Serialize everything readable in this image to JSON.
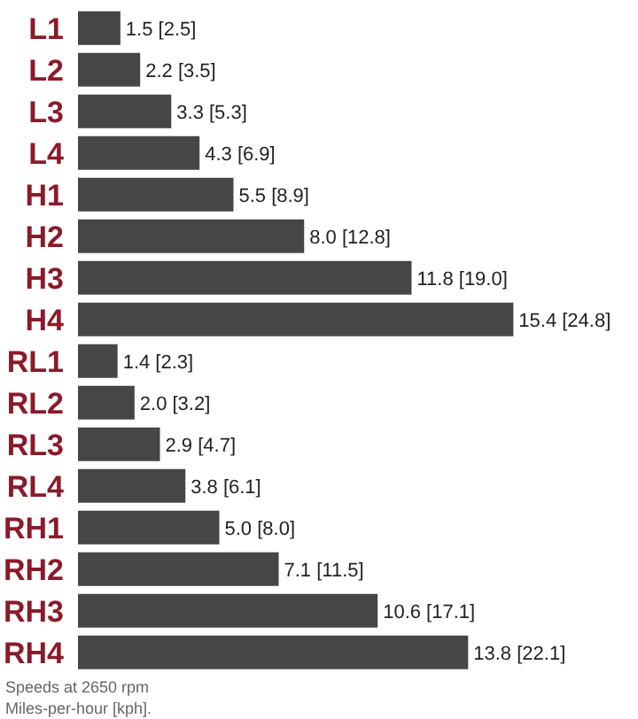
{
  "chart_data": {
    "type": "bar",
    "orientation": "horizontal",
    "categories": [
      "L1",
      "L2",
      "L3",
      "L4",
      "H1",
      "H2",
      "H3",
      "H4",
      "RL1",
      "RL2",
      "RL3",
      "RL4",
      "RH1",
      "RH2",
      "RH3",
      "RH4"
    ],
    "values": [
      1.5,
      2.2,
      3.3,
      4.3,
      5.5,
      8.0,
      11.8,
      15.4,
      1.4,
      2.0,
      2.9,
      3.8,
      5.0,
      7.1,
      10.6,
      13.8
    ],
    "value_labels": [
      "1.5 [2.5]",
      "2.2 [3.5]",
      "3.3 [5.3]",
      "4.3 [6.9]",
      "5.5 [8.9]",
      "8.0 [12.8]",
      "11.8 [19.0]",
      "15.4 [24.8]",
      "1.4 [2.3]",
      "2.0 [3.2]",
      "2.9 [4.7]",
      "3.8 [6.1]",
      "5.0 [8.0]",
      "7.1 [11.5]",
      "10.6 [17.1]",
      "13.8 [22.1]"
    ],
    "color": "#464646",
    "annotations": [
      "Speeds at 2650 rpm",
      "Miles-per-hour [kph]."
    ]
  }
}
